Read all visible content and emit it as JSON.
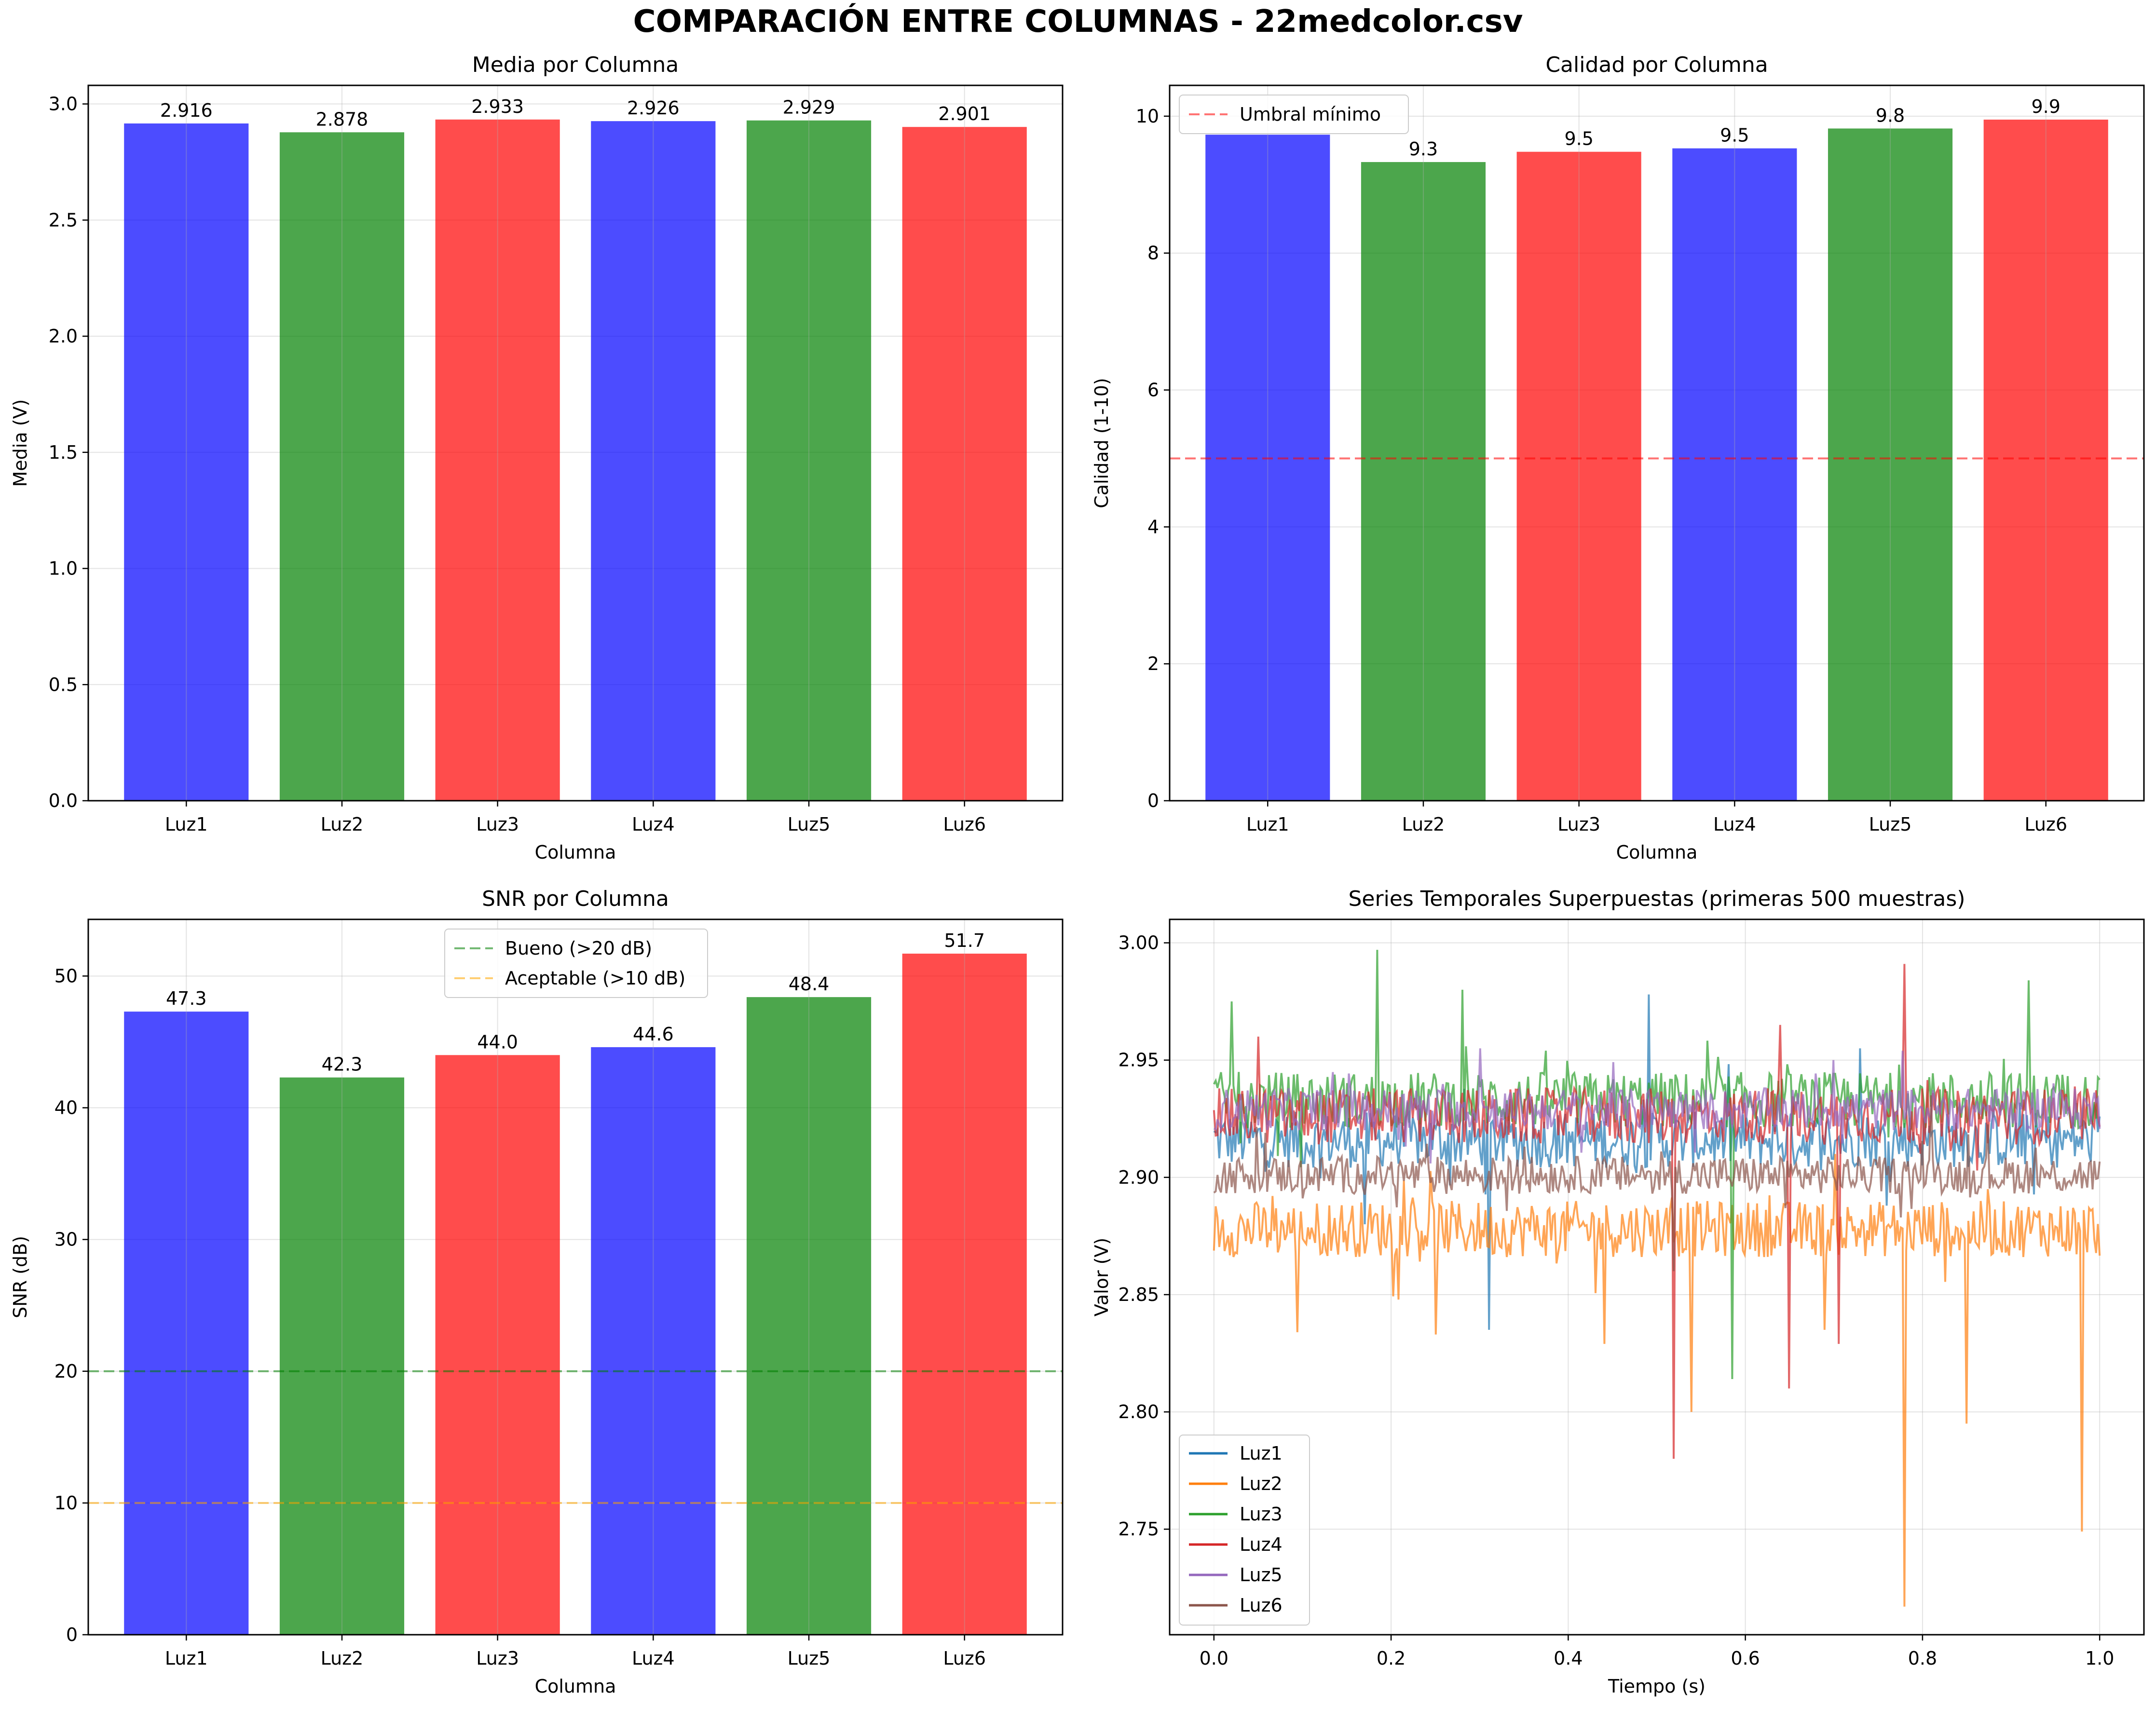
{
  "suptitle": "COMPARACIÓN ENTRE COLUMNAS - 22medcolor.csv",
  "colors": {
    "blue": "#0000ff",
    "green": "#008000",
    "red": "#ff0000",
    "orange": "#ffa500"
  },
  "chart_data": [
    {
      "type": "bar",
      "title": "Media por Columna",
      "xlabel": "Columna",
      "ylabel": "Media (V)",
      "categories": [
        "Luz1",
        "Luz2",
        "Luz3",
        "Luz4",
        "Luz5",
        "Luz6"
      ],
      "values": [
        2.916,
        2.878,
        2.933,
        2.926,
        2.929,
        2.901
      ],
      "value_labels": [
        "2.916",
        "2.878",
        "2.933",
        "2.926",
        "2.929",
        "2.901"
      ],
      "bar_colors": [
        "#0000ff",
        "#008000",
        "#ff0000",
        "#0000ff",
        "#008000",
        "#ff0000"
      ],
      "ylim": [
        0,
        3.08
      ],
      "yticks": [
        0.0,
        0.5,
        1.0,
        1.5,
        2.0,
        2.5,
        3.0
      ],
      "ytick_labels": [
        "0.0",
        "0.5",
        "1.0",
        "1.5",
        "2.0",
        "2.5",
        "3.0"
      ],
      "grid": true
    },
    {
      "type": "bar",
      "title": "Calidad por Columna",
      "xlabel": "Columna",
      "ylabel": "Calidad (1-10)",
      "categories": [
        "Luz1",
        "Luz2",
        "Luz3",
        "Luz4",
        "Luz5",
        "Luz6"
      ],
      "values": [
        9.73,
        9.33,
        9.48,
        9.53,
        9.82,
        9.95
      ],
      "value_labels": [
        "",
        "9.3",
        "9.5",
        "9.5",
        "9.8",
        "9.9"
      ],
      "bar_colors": [
        "#0000ff",
        "#008000",
        "#ff0000",
        "#0000ff",
        "#008000",
        "#ff0000"
      ],
      "ylim": [
        0,
        10.45
      ],
      "yticks": [
        0,
        2,
        4,
        6,
        8,
        10
      ],
      "ytick_labels": [
        "0",
        "2",
        "4",
        "6",
        "8",
        "10"
      ],
      "hlines": [
        {
          "y": 5,
          "color": "#ff0000",
          "label": "Umbral mínimo"
        }
      ],
      "legend": "upper-left",
      "grid": true
    },
    {
      "type": "bar",
      "title": "SNR por Columna",
      "xlabel": "Columna",
      "ylabel": "SNR (dB)",
      "categories": [
        "Luz1",
        "Luz2",
        "Luz3",
        "Luz4",
        "Luz5",
        "Luz6"
      ],
      "values": [
        47.3,
        42.3,
        44.0,
        44.6,
        48.4,
        51.7
      ],
      "value_labels": [
        "47.3",
        "42.3",
        "44.0",
        "44.6",
        "48.4",
        "51.7"
      ],
      "bar_colors": [
        "#0000ff",
        "#008000",
        "#ff0000",
        "#0000ff",
        "#008000",
        "#ff0000"
      ],
      "ylim": [
        0,
        54.3
      ],
      "yticks": [
        0,
        10,
        20,
        30,
        40,
        50
      ],
      "ytick_labels": [
        "0",
        "10",
        "20",
        "30",
        "40",
        "50"
      ],
      "hlines": [
        {
          "y": 20,
          "color": "#008000",
          "label": "Bueno (>20 dB)"
        },
        {
          "y": 10,
          "color": "#ffa500",
          "label": "Aceptable (>10 dB)"
        }
      ],
      "legend": "upper-center",
      "grid": true
    },
    {
      "type": "line",
      "title": "Series Temporales Superpuestas (primeras 500 muestras)",
      "xlabel": "Tiempo (s)",
      "ylabel": "Valor (V)",
      "xlim": [
        -0.05,
        1.05
      ],
      "ylim": [
        2.705,
        3.01
      ],
      "xticks": [
        0.0,
        0.2,
        0.4,
        0.6,
        0.8,
        1.0
      ],
      "xtick_labels": [
        "0.0",
        "0.2",
        "0.4",
        "0.6",
        "0.8",
        "1.0"
      ],
      "yticks": [
        2.75,
        2.8,
        2.85,
        2.9,
        2.95,
        3.0
      ],
      "ytick_labels": [
        "2.75",
        "2.80",
        "2.85",
        "2.90",
        "2.95",
        "3.00"
      ],
      "n_samples": 500,
      "legend": "lower-left",
      "grid": true,
      "series": [
        {
          "name": "Luz1",
          "color": "#1f77b4",
          "mean": 2.916,
          "spread": 0.012,
          "spikes": [
            [
              0.31,
              2.835
            ],
            [
              0.49,
              2.978
            ],
            [
              0.17,
              2.88
            ],
            [
              0.73,
              2.955
            ]
          ]
        },
        {
          "name": "Luz2",
          "color": "#ff7f0e",
          "mean": 2.878,
          "spread": 0.012,
          "spikes": [
            [
              0.78,
              2.717
            ],
            [
              0.98,
              2.749
            ],
            [
              0.85,
              2.795
            ],
            [
              0.54,
              2.8
            ],
            [
              0.095,
              2.834
            ],
            [
              0.25,
              2.833
            ],
            [
              0.44,
              2.829
            ],
            [
              0.69,
              2.835
            ]
          ]
        },
        {
          "name": "Luz3",
          "color": "#2ca02c",
          "mean": 2.933,
          "spread": 0.012,
          "spikes": [
            [
              0.185,
              2.997
            ],
            [
              0.585,
              2.814
            ],
            [
              0.92,
              2.984
            ],
            [
              0.02,
              2.975
            ],
            [
              0.28,
              2.98
            ],
            [
              0.5,
              2.85
            ]
          ]
        },
        {
          "name": "Luz4",
          "color": "#d62728",
          "mean": 2.926,
          "spread": 0.012,
          "spikes": [
            [
              0.52,
              2.78
            ],
            [
              0.78,
              2.991
            ],
            [
              0.65,
              2.81
            ],
            [
              0.705,
              2.829
            ],
            [
              0.05,
              2.96
            ],
            [
              0.64,
              2.965
            ]
          ]
        },
        {
          "name": "Luz5",
          "color": "#9467bd",
          "mean": 2.929,
          "spread": 0.009,
          "spikes": [
            [
              0.3,
              2.955
            ],
            [
              0.7,
              2.95
            ]
          ]
        },
        {
          "name": "Luz6",
          "color": "#8c564b",
          "mean": 2.901,
          "spread": 0.008,
          "spikes": [
            [
              0.52,
              2.86
            ],
            [
              0.81,
              2.935
            ]
          ]
        }
      ]
    }
  ]
}
